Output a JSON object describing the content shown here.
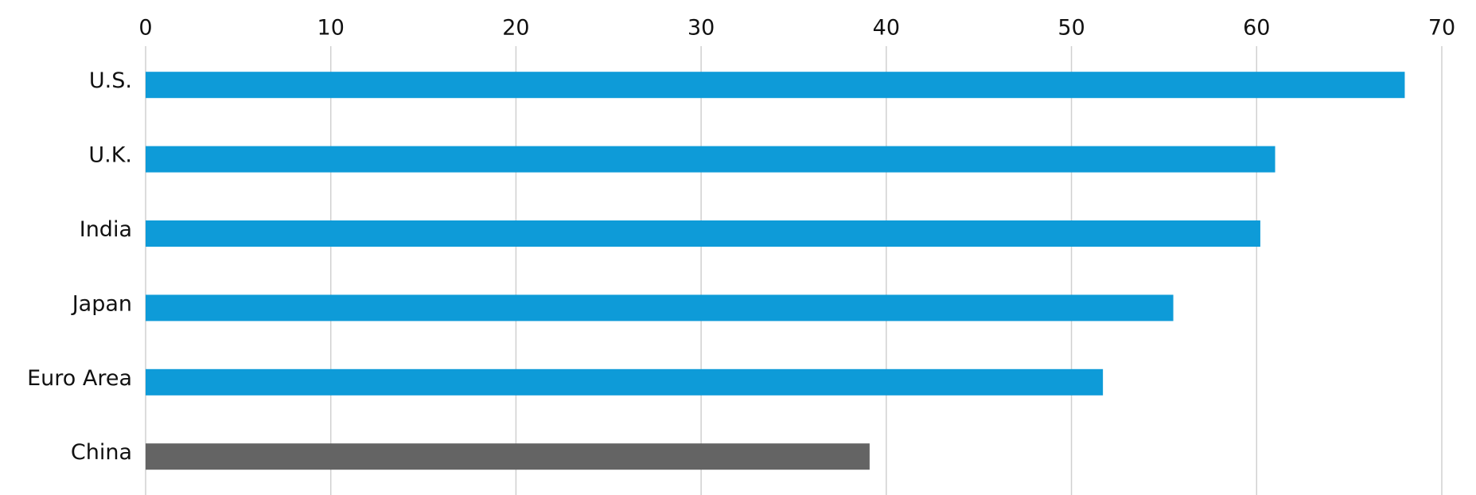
{
  "chart_data": {
    "type": "hbar",
    "categories": [
      "U.S.",
      "U.K.",
      "India",
      "Japan",
      "Euro Area",
      "China"
    ],
    "values": [
      68,
      61,
      60.2,
      55.5,
      51.7,
      39.1
    ],
    "colors": [
      "#0e9bd8",
      "#0e9bd8",
      "#0e9bd8",
      "#0e9bd8",
      "#0e9bd8",
      "#646464"
    ],
    "xlim": [
      0,
      70
    ],
    "xticks": [
      0,
      10,
      20,
      30,
      40,
      50,
      60,
      70
    ],
    "grid": true
  }
}
